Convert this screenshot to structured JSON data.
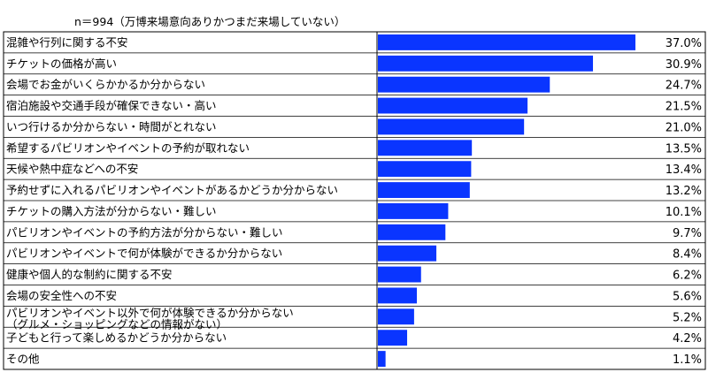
{
  "subtitle": "n＝994（万博来場意向ありかつまだ来場していない）",
  "colors": {
    "bar": "#0a35ff",
    "grid": "#000000"
  },
  "chart_data": {
    "type": "bar",
    "orientation": "horizontal",
    "title": "",
    "subtitle": "n＝994（万博来場意向ありかつまだ来場していない）",
    "unit": "%",
    "xlim": [
      0,
      40
    ],
    "grid": true,
    "legend": "none",
    "categories": [
      [
        "混雑や行列に関する不安"
      ],
      [
        "チケットの価格が高い"
      ],
      [
        "会場でお金がいくらかかるか分からない"
      ],
      [
        "宿泊施設や交通手段が確保できない・高い"
      ],
      [
        "いつ行けるか分からない・時間がとれない"
      ],
      [
        "希望するパビリオンやイベントの予約が取れない"
      ],
      [
        "天候や熱中症などへの不安"
      ],
      [
        "予約せずに入れるパビリオンやイベントがあるかどうか分からない"
      ],
      [
        "チケットの購入方法が分からない・難しい"
      ],
      [
        "パビリオンやイベントの予約方法が分からない・難しい"
      ],
      [
        "パビリオンやイベントで何が体験ができるか分からない"
      ],
      [
        "健康や個人的な制約に関する不安"
      ],
      [
        "会場の安全性への不安"
      ],
      [
        "パビリオンやイベント以外で何が体験できるか分からない",
        "（グルメ・ショッピングなどの情報がない）"
      ],
      [
        "子どもと行って楽しめるかどうか分からない"
      ],
      [
        "その他"
      ]
    ],
    "values": [
      37.0,
      30.9,
      24.7,
      21.5,
      21.0,
      13.5,
      13.4,
      13.2,
      10.1,
      9.7,
      8.4,
      6.2,
      5.6,
      5.2,
      4.2,
      1.1
    ],
    "value_labels": [
      "37.0%",
      "30.9%",
      "24.7%",
      "21.5%",
      "21.0%",
      "13.5%",
      "13.4%",
      "13.2%",
      "10.1%",
      "9.7%",
      "8.4%",
      "6.2%",
      "5.6%",
      "5.2%",
      "4.2%",
      "1.1%"
    ]
  }
}
